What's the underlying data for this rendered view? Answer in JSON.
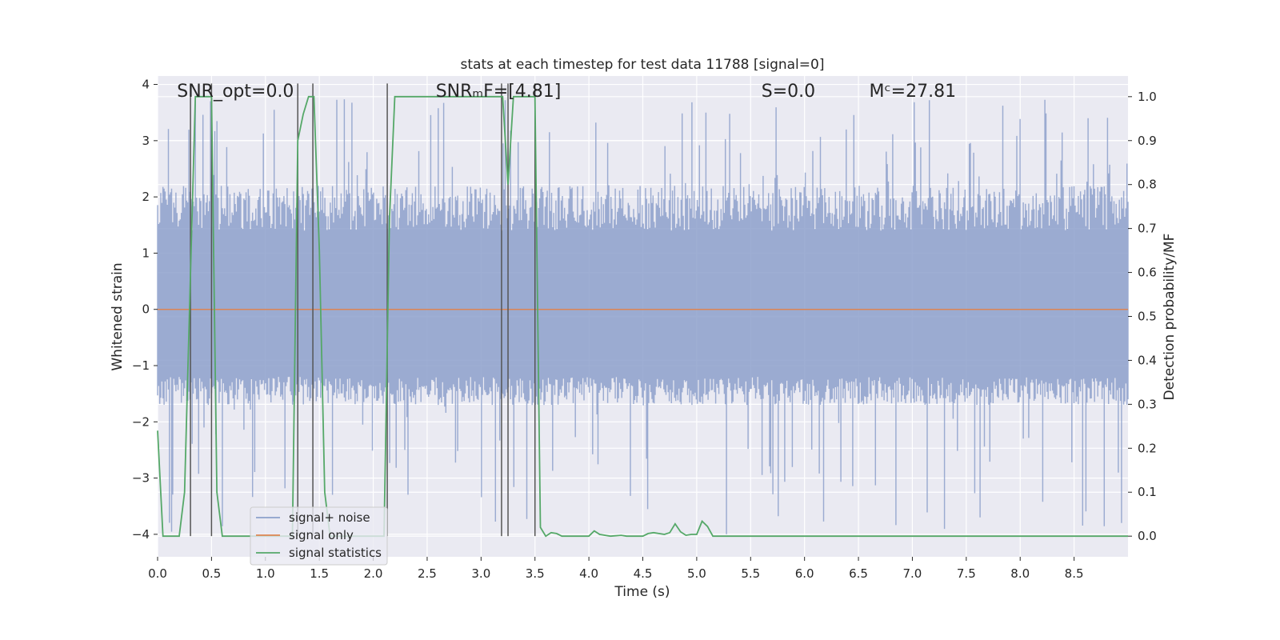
{
  "chart_data": {
    "type": "line",
    "title": "stats at each timestep for test data 11788 [signal=0]",
    "xlabel": "Time (s)",
    "ylabel": "Whitened strain",
    "y2label": "Detection probability/MF",
    "xlim": [
      0,
      9.0
    ],
    "ylim": [
      -4.4,
      4.15
    ],
    "y2lim": [
      -0.047,
      1.047
    ],
    "xticks": [
      0.0,
      0.5,
      1.0,
      1.5,
      2.0,
      2.5,
      3.0,
      3.5,
      4.0,
      4.5,
      5.0,
      5.5,
      6.0,
      6.5,
      7.0,
      7.5,
      8.0,
      8.5
    ],
    "xtick_labels": [
      "0.0",
      "0.5",
      "1.0",
      "1.5",
      "2.0",
      "2.5",
      "3.0",
      "3.5",
      "4.0",
      "4.5",
      "5.0",
      "5.5",
      "6.0",
      "6.5",
      "7.0",
      "7.5",
      "8.0",
      "8.5"
    ],
    "yticks": [
      4,
      3,
      2,
      1,
      0,
      -1,
      -2,
      -3,
      -4
    ],
    "ytick_labels": [
      "4",
      "3",
      "2",
      "1",
      "0",
      "−1",
      "−2",
      "−3",
      "−4"
    ],
    "y2ticks": [
      1.0,
      0.9,
      0.8,
      0.7,
      0.6,
      0.5,
      0.4,
      0.3,
      0.2,
      0.1,
      0.0
    ],
    "y2tick_labels": [
      "1.0",
      "0.9",
      "0.8",
      "0.7",
      "0.6",
      "0.5",
      "0.4",
      "0.3",
      "0.2",
      "0.1",
      "0.0"
    ],
    "annotations": [
      {
        "name": "snr-opt",
        "x": 0.18,
        "text": "SNR_opt=0.0"
      },
      {
        "name": "snr-mf",
        "x": 2.58,
        "text": "SNRₘF=[4.81]"
      },
      {
        "name": "s-value",
        "x": 5.6,
        "text": "S=0.0"
      },
      {
        "name": "mc-value",
        "x": 6.6,
        "text": "Mᶜ=27.81"
      }
    ],
    "noise_series": {
      "name": "signal+ noise",
      "color": "#8da0cb",
      "sample_count": 900,
      "typical_envelope": [
        -1.7,
        2.2
      ],
      "max_extreme": 3.75,
      "min_extreme": -4.0
    },
    "signal_only": {
      "name": "signal only",
      "color": "#dd8452",
      "value": 0.0
    },
    "statistics_series": {
      "name": "signal statistics",
      "color": "#55a868",
      "x": [
        0.0,
        0.05,
        0.1,
        0.2,
        0.25,
        0.3,
        0.35,
        0.4,
        0.45,
        0.5,
        0.55,
        0.6,
        1.25,
        1.3,
        1.35,
        1.4,
        1.45,
        1.5,
        1.55,
        1.6,
        2.1,
        2.15,
        2.2,
        3.15,
        3.2,
        3.25,
        3.3,
        3.35,
        3.5,
        3.55,
        3.6,
        3.65,
        3.7,
        3.75,
        3.8,
        4.0,
        4.05,
        4.1,
        4.2,
        4.3,
        4.35,
        4.5,
        4.55,
        4.6,
        4.7,
        4.75,
        4.8,
        4.85,
        4.9,
        4.95,
        5.0,
        5.05,
        5.1,
        5.15,
        9.0
      ],
      "y": [
        0.24,
        0.0,
        0.0,
        0.0,
        0.1,
        0.55,
        1.0,
        1.0,
        1.0,
        1.0,
        0.1,
        0.0,
        0.0,
        0.9,
        0.96,
        1.0,
        1.0,
        0.65,
        0.1,
        0.0,
        0.0,
        0.72,
        1.0,
        1.0,
        1.0,
        0.8,
        1.0,
        1.0,
        1.0,
        0.02,
        0.0,
        0.008,
        0.006,
        0.0,
        0.0,
        0.0,
        0.012,
        0.004,
        0.0,
        0.002,
        0.0,
        0.0,
        0.006,
        0.008,
        0.004,
        0.008,
        0.028,
        0.01,
        0.002,
        0.004,
        0.004,
        0.034,
        0.022,
        0.0,
        0.0
      ]
    },
    "vertical_markers": [
      0.305,
      0.5,
      1.3,
      1.44,
      2.13,
      3.19,
      3.25,
      3.5
    ],
    "marker_color": "#555555",
    "legend": {
      "placement": "lower-left",
      "entries": [
        "signal+ noise",
        "signal only",
        "signal statistics"
      ]
    },
    "grid": true
  }
}
